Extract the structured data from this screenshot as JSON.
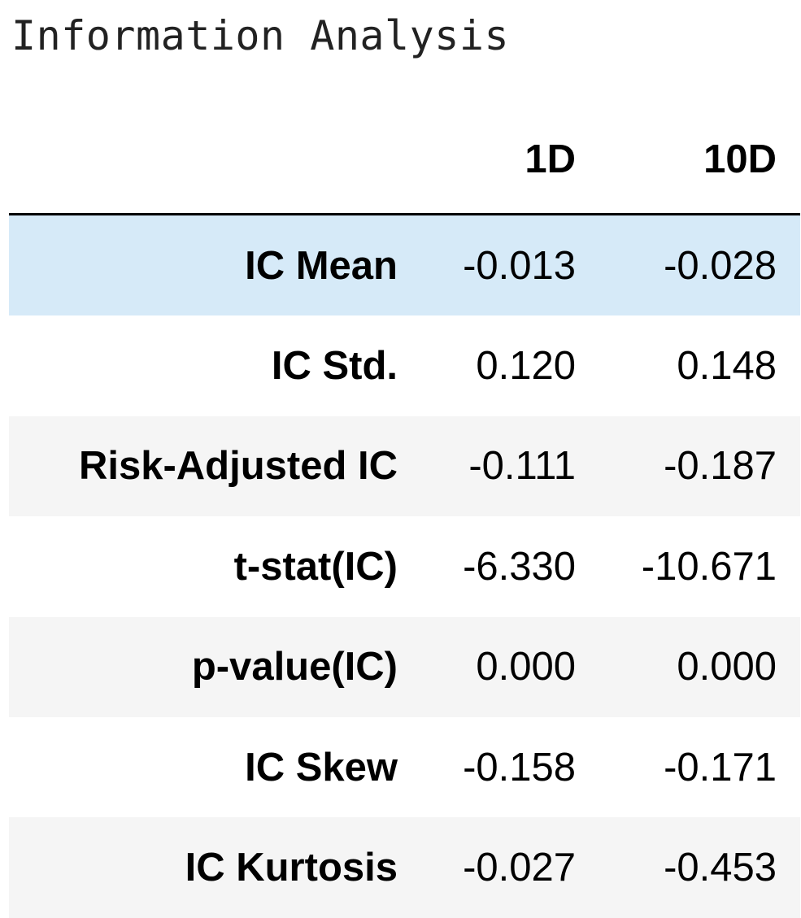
{
  "title": "Information Analysis",
  "table": {
    "columns": [
      "",
      "1D",
      "10D"
    ],
    "rows": [
      {
        "label": "IC Mean",
        "d1": "-0.013",
        "d10": "-0.028"
      },
      {
        "label": "IC Std.",
        "d1": "0.120",
        "d10": "0.148"
      },
      {
        "label": "Risk-Adjusted IC",
        "d1": "-0.111",
        "d10": "-0.187"
      },
      {
        "label": "t-stat(IC)",
        "d1": "-6.330",
        "d10": "-10.671"
      },
      {
        "label": "p-value(IC)",
        "d1": "0.000",
        "d10": "0.000"
      },
      {
        "label": "IC Skew",
        "d1": "-0.158",
        "d10": "-0.171"
      },
      {
        "label": "IC Kurtosis",
        "d1": "-0.027",
        "d10": "-0.453"
      }
    ],
    "highlighted_row": "IC Mean",
    "colors": {
      "highlight": "#d6eaf8",
      "stripe": "#f5f5f5",
      "header_rule": "#000000"
    }
  }
}
